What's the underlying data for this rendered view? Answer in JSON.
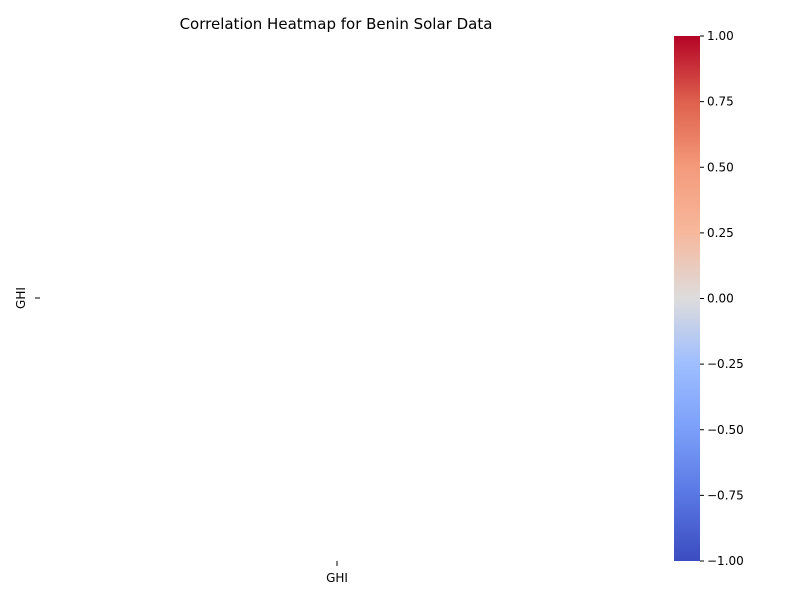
{
  "chart_data": {
    "type": "heatmap",
    "title": "Correlation Heatmap for Benin Solar Data",
    "x_categories": [
      "GHI"
    ],
    "y_categories": [
      "GHI"
    ],
    "values": [
      [
        null
      ]
    ],
    "colormap": "coolwarm",
    "colorbar": {
      "min": -1.0,
      "max": 1.0,
      "ticks": [
        1.0,
        0.75,
        0.5,
        0.25,
        0.0,
        -0.25,
        -0.5,
        -0.75,
        -1.0
      ],
      "tick_labels": [
        "1.00",
        "0.75",
        "0.50",
        "0.25",
        "0.00",
        "−0.25",
        "−0.50",
        "−0.75",
        "−1.00"
      ]
    },
    "colors": {
      "low": "#3b4cc0",
      "mid": "#dddddd",
      "high": "#b40426"
    }
  }
}
